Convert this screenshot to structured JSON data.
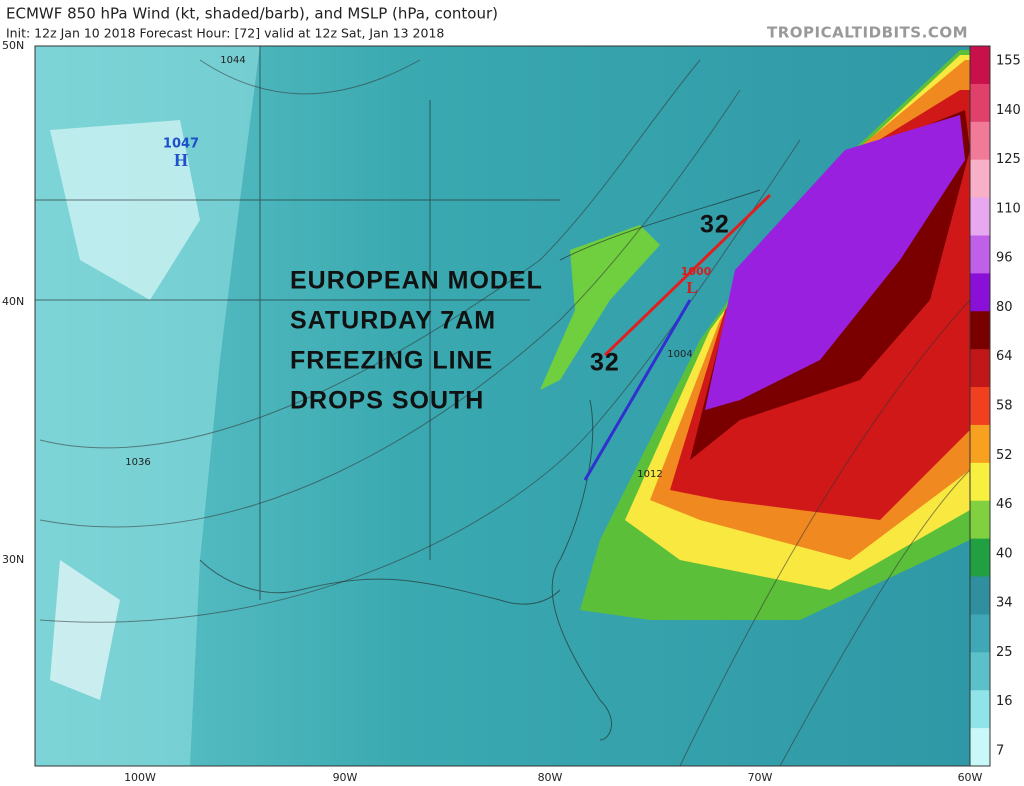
{
  "header": {
    "title": "ECMWF 850 hPa Wind (kt, shaded/barb), and MSLP (hPa, contour)",
    "subtitle": "Init: 12z Jan 10 2018   Forecast Hour: [72]   valid at 12z Sat, Jan 13 2018",
    "source": "TROPICALTIDBITS.COM"
  },
  "axes": {
    "latitude": [
      "50N",
      "40N",
      "30N"
    ],
    "longitude": [
      "100W",
      "90W",
      "80W",
      "70W",
      "60W"
    ]
  },
  "colorbar": {
    "ticks": [
      155,
      140,
      125,
      110,
      96,
      80,
      64,
      58,
      52,
      46,
      40,
      34,
      25,
      16,
      7
    ],
    "colors": [
      "#c8104a",
      "#e0406a",
      "#f07a98",
      "#f7b0c8",
      "#e8a8f0",
      "#c060e8",
      "#8a10d8",
      "#7a0000",
      "#c01818",
      "#f04020",
      "#f8a020",
      "#f8f040",
      "#80d040",
      "#20a040",
      "#2f8f9f",
      "#3fa7b5",
      "#5cc0c8",
      "#90e4e8",
      "#c8f8f8"
    ]
  },
  "annotation": {
    "lines": [
      "EUROPEAN MODEL",
      "SATURDAY 7AM",
      "FREEZING LINE",
      "DROPS SOUTH"
    ],
    "freezing_labels": [
      "32",
      "32"
    ]
  },
  "pressure_labels": {
    "high": {
      "value": "1047",
      "symbol": "H"
    },
    "low": {
      "value": "1000",
      "symbol": "L"
    },
    "isobars": [
      "1044",
      "1036",
      "1004",
      "1012"
    ]
  }
}
